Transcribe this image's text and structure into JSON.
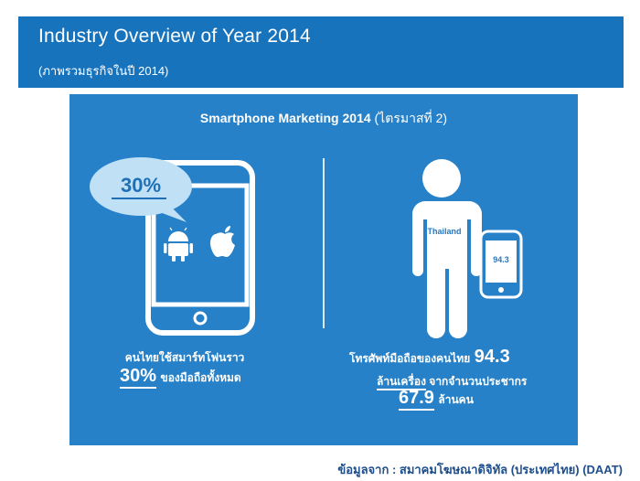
{
  "header": {
    "title": "Industry Overview of Year 2014",
    "subtitle": "(ภาพรวมธุรกิจในปี 2014)"
  },
  "infographic": {
    "title_en": "Smartphone Marketing 2014",
    "title_th": "(ไตรมาสที่ 2)",
    "left": {
      "bubble_value": "30%",
      "icons": [
        "android-icon",
        "apple-icon"
      ],
      "caption_line1": "คนไทยใช้สมาร์ทโฟนราว",
      "caption_value": "30%",
      "caption_line2": "ของมือถือทั้งหมด"
    },
    "right": {
      "person_label": "Thailand",
      "phone_value": "94.3",
      "caption_line1": "โทรศัพท์มือถือของคนไทย",
      "caption_value1": "94.3",
      "caption_line2a": "ล้านเครื่อง",
      "caption_line2b": "จากจำนวนประชากร",
      "caption_value2": "67.9",
      "caption_line3": "ล้านคน"
    }
  },
  "source": "ข้อมูลจาก : สมาคมโฆษณาดิจิทัล (ประเทศไทย) (DAAT)",
  "colors": {
    "header_bg": "#1873bd",
    "panel_bg": "#2781c8",
    "bubble": "#bfe0f5",
    "source_text": "#1e4f8c"
  }
}
